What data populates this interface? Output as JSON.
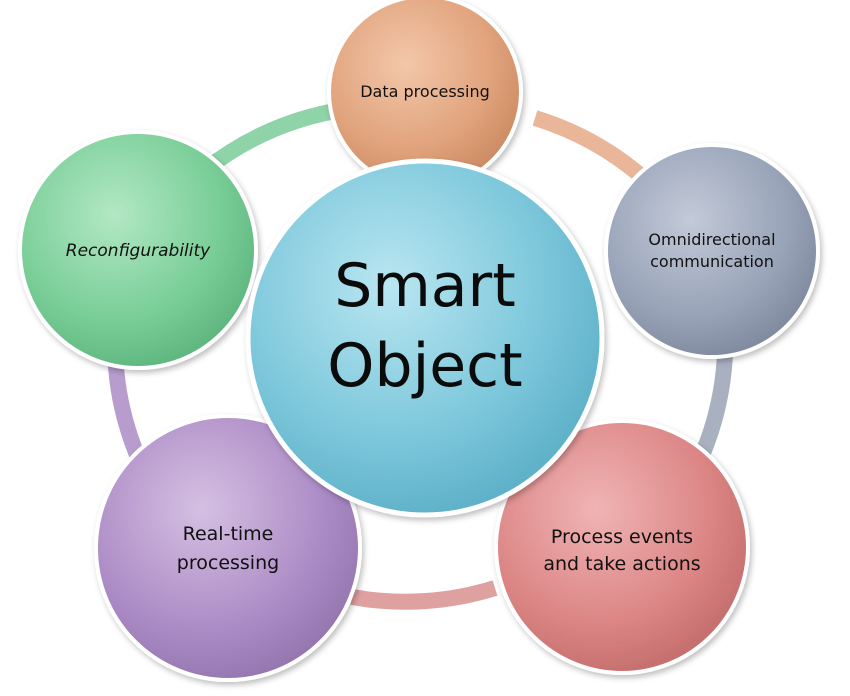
{
  "diagram": {
    "center": {
      "line1": "Smart",
      "line2": "Object",
      "color": "#7ec8dc"
    },
    "nodes": [
      {
        "id": "data-processing",
        "line1": "Data processing",
        "line2": "",
        "color": "#e8a57c"
      },
      {
        "id": "omnidirectional-communication",
        "line1": "Omnidirectional",
        "line2": "communication",
        "color": "#9aa4b8"
      },
      {
        "id": "process-events",
        "line1": "Process events",
        "line2": "and take actions",
        "color": "#e08a8a"
      },
      {
        "id": "real-time-processing",
        "line1": "Real-time",
        "line2": "processing",
        "color": "#b192c8"
      },
      {
        "id": "reconfigurability",
        "line1": "Reconfigurability",
        "line2": "",
        "color": "#7ccf99"
      }
    ],
    "ring_colors": {
      "data_to_omni": "#e9b69a",
      "omni_to_events": "#a9b0c0",
      "events_to_realtime": "#dfa0a0",
      "realtime_to_reconfig": "#b79ccd",
      "reconfig_to_data": "#8fd3a8"
    }
  }
}
